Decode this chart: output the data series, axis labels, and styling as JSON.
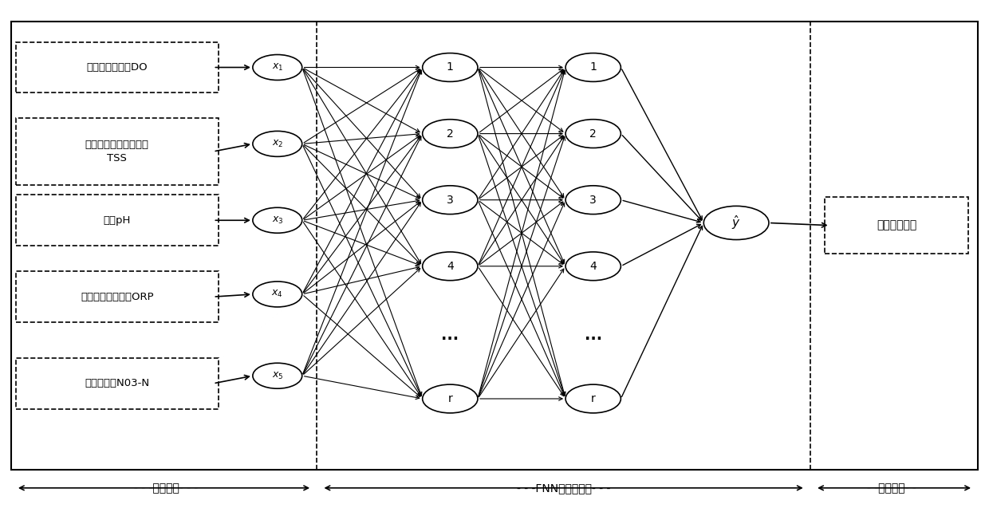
{
  "bg_color": "#ffffff",
  "border_color": "#000000",
  "node_color": "#ffffff",
  "node_edge_color": "#000000",
  "arrow_color": "#000000",
  "text_color": "#000000",
  "input_boxes": [
    "好氧末段溶解氧DO",
    "好氧末端总固体悬浮物\nTSS",
    "出水pH",
    "出水氧化还原电位ORP",
    "出水硝态氮N03-N"
  ],
  "input_nodes": [
    "x₁",
    "x₂",
    "x₃",
    "x₄",
    "x₅"
  ],
  "hidden1_nodes": [
    "1",
    "2",
    "3",
    "4",
    "...",
    "r"
  ],
  "hidden2_nodes": [
    "1",
    "2",
    "3",
    "4",
    "...",
    "r"
  ],
  "output_node": "ŷ",
  "output_box": "出水氨氮浓度",
  "bottom_labels": [
    "←- - -输入变量- -→",
    "←- - -FNN软测量模型- - -→",
    "←- -输出变量- -→"
  ],
  "section_dividers": [
    0.32,
    0.82
  ],
  "figsize": [
    12.4,
    6.42
  ],
  "dpi": 100
}
